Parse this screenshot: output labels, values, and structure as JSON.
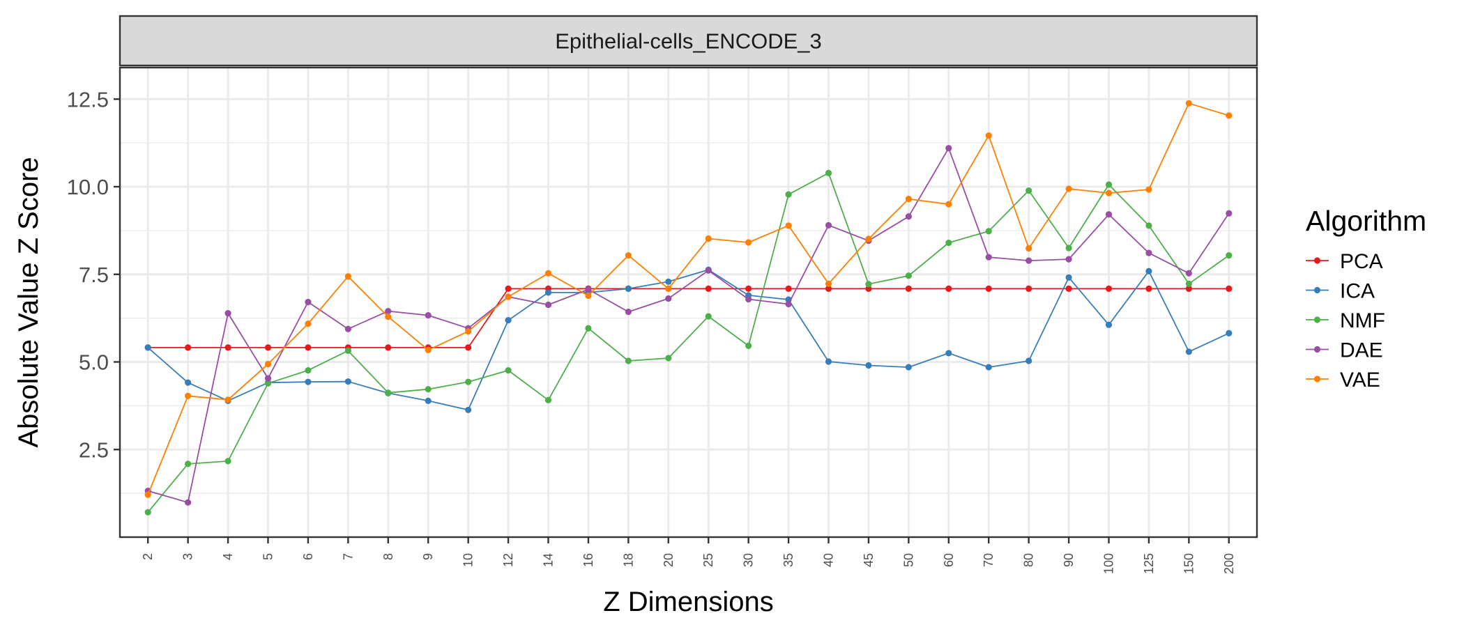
{
  "chart_data": {
    "type": "line",
    "title": "",
    "facet_label": "Epithelial-cells_ENCODE_3",
    "xlabel": "Z Dimensions",
    "ylabel": "Absolute Value Z Score",
    "categories": [
      "2",
      "3",
      "4",
      "5",
      "6",
      "7",
      "8",
      "9",
      "10",
      "12",
      "14",
      "16",
      "18",
      "20",
      "25",
      "30",
      "35",
      "40",
      "45",
      "50",
      "60",
      "70",
      "80",
      "90",
      "100",
      "125",
      "150",
      "200"
    ],
    "ylim": [
      0,
      13.4
    ],
    "yticks": [
      2.5,
      5.0,
      7.5,
      10.0,
      12.5
    ],
    "ytick_labels": [
      "2.5",
      "5.0",
      "7.5",
      "10.0",
      "12.5"
    ],
    "grid": true,
    "legend_title": "Algorithm",
    "legend_position": "right",
    "series": [
      {
        "name": "PCA",
        "color": "#e41a1c",
        "values": [
          5.41,
          5.41,
          5.41,
          5.41,
          5.41,
          5.41,
          5.41,
          5.41,
          5.41,
          7.09,
          7.09,
          7.09,
          7.09,
          7.09,
          7.09,
          7.09,
          7.09,
          7.09,
          7.09,
          7.09,
          7.09,
          7.09,
          7.09,
          7.09,
          7.09,
          7.09,
          7.09,
          7.09
        ]
      },
      {
        "name": "ICA",
        "color": "#377eb8",
        "values": [
          5.41,
          4.41,
          3.89,
          4.41,
          4.43,
          4.44,
          4.11,
          3.89,
          3.63,
          6.19,
          6.98,
          6.98,
          7.09,
          7.29,
          7.63,
          6.9,
          6.78,
          5.01,
          4.9,
          4.85,
          5.25,
          4.85,
          5.03,
          7.41,
          6.06,
          7.59,
          5.29,
          5.82
        ]
      },
      {
        "name": "NMF",
        "color": "#4daf4a",
        "values": [
          0.71,
          2.09,
          2.17,
          4.39,
          4.76,
          5.32,
          4.12,
          4.22,
          4.43,
          4.76,
          3.91,
          5.96,
          5.03,
          5.11,
          6.3,
          5.46,
          9.78,
          10.39,
          7.22,
          7.46,
          8.4,
          8.73,
          9.89,
          8.25,
          10.06,
          8.89,
          7.23,
          8.04
        ]
      },
      {
        "name": "DAE",
        "color": "#984ea3",
        "values": [
          1.32,
          0.99,
          6.39,
          4.53,
          6.71,
          5.94,
          6.45,
          6.33,
          5.96,
          6.86,
          6.63,
          7.07,
          6.43,
          6.81,
          7.61,
          6.79,
          6.65,
          8.9,
          8.46,
          9.15,
          11.1,
          7.99,
          7.89,
          7.93,
          9.21,
          8.11,
          7.53,
          9.24
        ]
      },
      {
        "name": "VAE",
        "color": "#ff7f00",
        "values": [
          1.21,
          4.03,
          3.92,
          4.94,
          6.09,
          7.44,
          6.29,
          5.34,
          5.87,
          6.86,
          7.53,
          6.89,
          8.04,
          7.09,
          8.52,
          8.41,
          8.89,
          7.23,
          8.51,
          9.65,
          9.5,
          11.46,
          8.24,
          9.94,
          9.82,
          9.92,
          12.38,
          12.03
        ]
      }
    ]
  }
}
